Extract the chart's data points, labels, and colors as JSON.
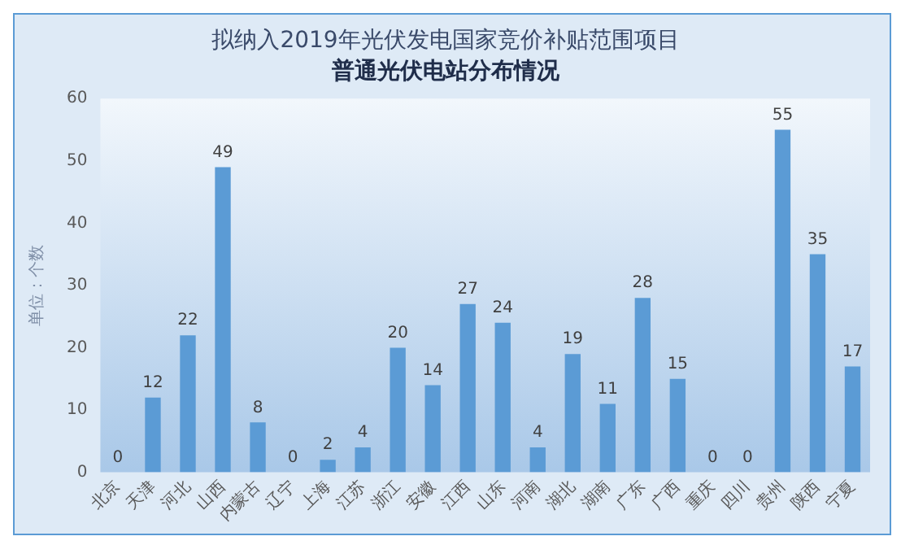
{
  "chart_data": {
    "type": "bar",
    "title": "拟纳入2019年光伏发电国家竞价补贴范围项目",
    "subtitle": "普通光伏电站分布情况",
    "ylabel": "单位：个数",
    "categories": [
      "北京",
      "天津",
      "河北",
      "山西",
      "内蒙古",
      "辽宁",
      "上海",
      "江苏",
      "浙江",
      "安徽",
      "江西",
      "山东",
      "河南",
      "湖北",
      "湖南",
      "广东",
      "广西",
      "重庆",
      "四川",
      "贵州",
      "陕西",
      "宁夏"
    ],
    "values": [
      0,
      12,
      22,
      49,
      8,
      0,
      2,
      4,
      20,
      14,
      27,
      24,
      4,
      19,
      11,
      28,
      15,
      0,
      0,
      55,
      35,
      17
    ],
    "color": "#5b9bd5",
    "ylim": [
      0,
      60
    ],
    "yticks": [
      0,
      10,
      20,
      30,
      40,
      50,
      60
    ],
    "grid": false,
    "legend": false,
    "data_labels": true
  }
}
